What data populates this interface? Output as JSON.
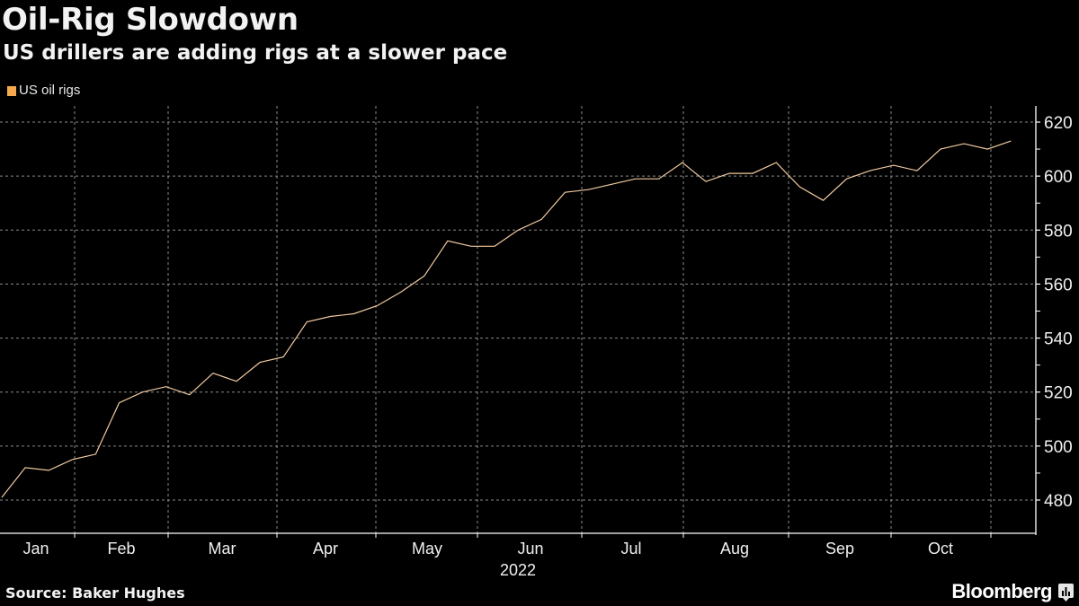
{
  "header": {
    "title": "Oil-Rig Slowdown",
    "subtitle": "US drillers are adding rigs at a slower pace"
  },
  "legend": {
    "items": [
      {
        "label": "US oil rigs",
        "color": "#f5a94e"
      }
    ]
  },
  "footer": {
    "source": "Source: Baker Hughes",
    "brand": "Bloomberg"
  },
  "colors": {
    "background": "#000000",
    "line": "#f0c9a0",
    "grid": "#8a8a8a",
    "axis": "#ffffff",
    "text": "#f2f2f2"
  },
  "chart_data": {
    "type": "line",
    "title": "Oil-Rig Slowdown",
    "subtitle": "US drillers are adding rigs at a slower pace",
    "xlabel": "2022",
    "ylabel": "",
    "ylim": [
      470,
      627
    ],
    "yticks": [
      480,
      500,
      520,
      540,
      560,
      580,
      600,
      620
    ],
    "y_axis_position": "right",
    "grid": true,
    "legend_position": "top-left",
    "x_tick_labels": [
      "Jan",
      "Feb",
      "Mar",
      "Apr",
      "May",
      "Jun",
      "Jul",
      "Aug",
      "Sep",
      "Oct"
    ],
    "x_year_label": "2022",
    "series": [
      {
        "name": "US oil rigs",
        "frequency": "weekly",
        "values": [
          481,
          492,
          491,
          495,
          497,
          516,
          520,
          522,
          519,
          527,
          524,
          531,
          533,
          546,
          548,
          549,
          552,
          557,
          563,
          576,
          574,
          574,
          580,
          584,
          594,
          595,
          597,
          599,
          599,
          605,
          598,
          601,
          601,
          605,
          596,
          591,
          599,
          602,
          604,
          602,
          610,
          612,
          610,
          613
        ]
      }
    ],
    "source": "Source: Baker Hughes"
  },
  "axis": {
    "y_labels": [
      "620",
      "600",
      "580",
      "560",
      "540",
      "520",
      "500",
      "480"
    ],
    "x_labels": [
      "Jan",
      "Feb",
      "Mar",
      "Apr",
      "May",
      "Jun",
      "Jul",
      "Aug",
      "Sep",
      "Oct"
    ],
    "year": "2022"
  }
}
